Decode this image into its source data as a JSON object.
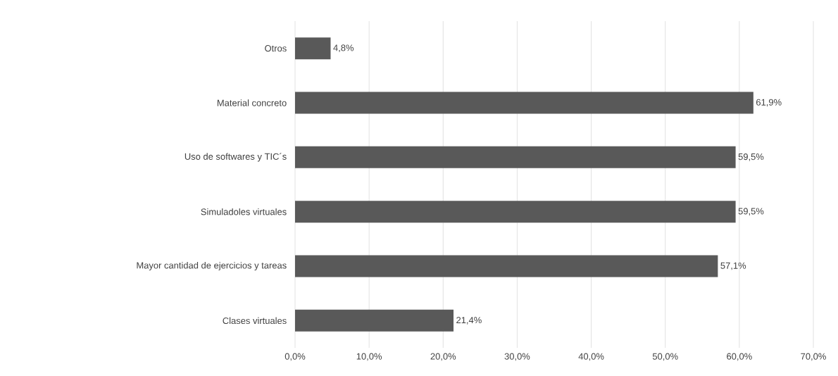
{
  "chart_data": {
    "type": "bar",
    "orientation": "horizontal",
    "categories": [
      "Otros",
      "Material concreto",
      "Uso de softwares y TIC´s",
      "Simuladoles virtuales",
      "Mayor cantidad de ejercicios y tareas",
      "Clases virtuales"
    ],
    "values": [
      4.8,
      61.9,
      59.5,
      59.5,
      57.1,
      21.4
    ],
    "value_labels": [
      "4,8%",
      "61,9%",
      "59,5%",
      "59,5%",
      "57,1%",
      "21,4%"
    ],
    "color": "#595959",
    "xlim": [
      0,
      70
    ],
    "xticks": [
      {
        "value": 0,
        "label": "0,0%"
      },
      {
        "value": 10,
        "label": "10,0%"
      },
      {
        "value": 20,
        "label": "20,0%"
      },
      {
        "value": 30,
        "label": "30,0%"
      },
      {
        "value": 40,
        "label": "40,0%"
      },
      {
        "value": 50,
        "label": "50,0%"
      },
      {
        "value": 60,
        "label": "60,0%"
      },
      {
        "value": 70,
        "label": "70,0%"
      }
    ],
    "grid": "x"
  }
}
